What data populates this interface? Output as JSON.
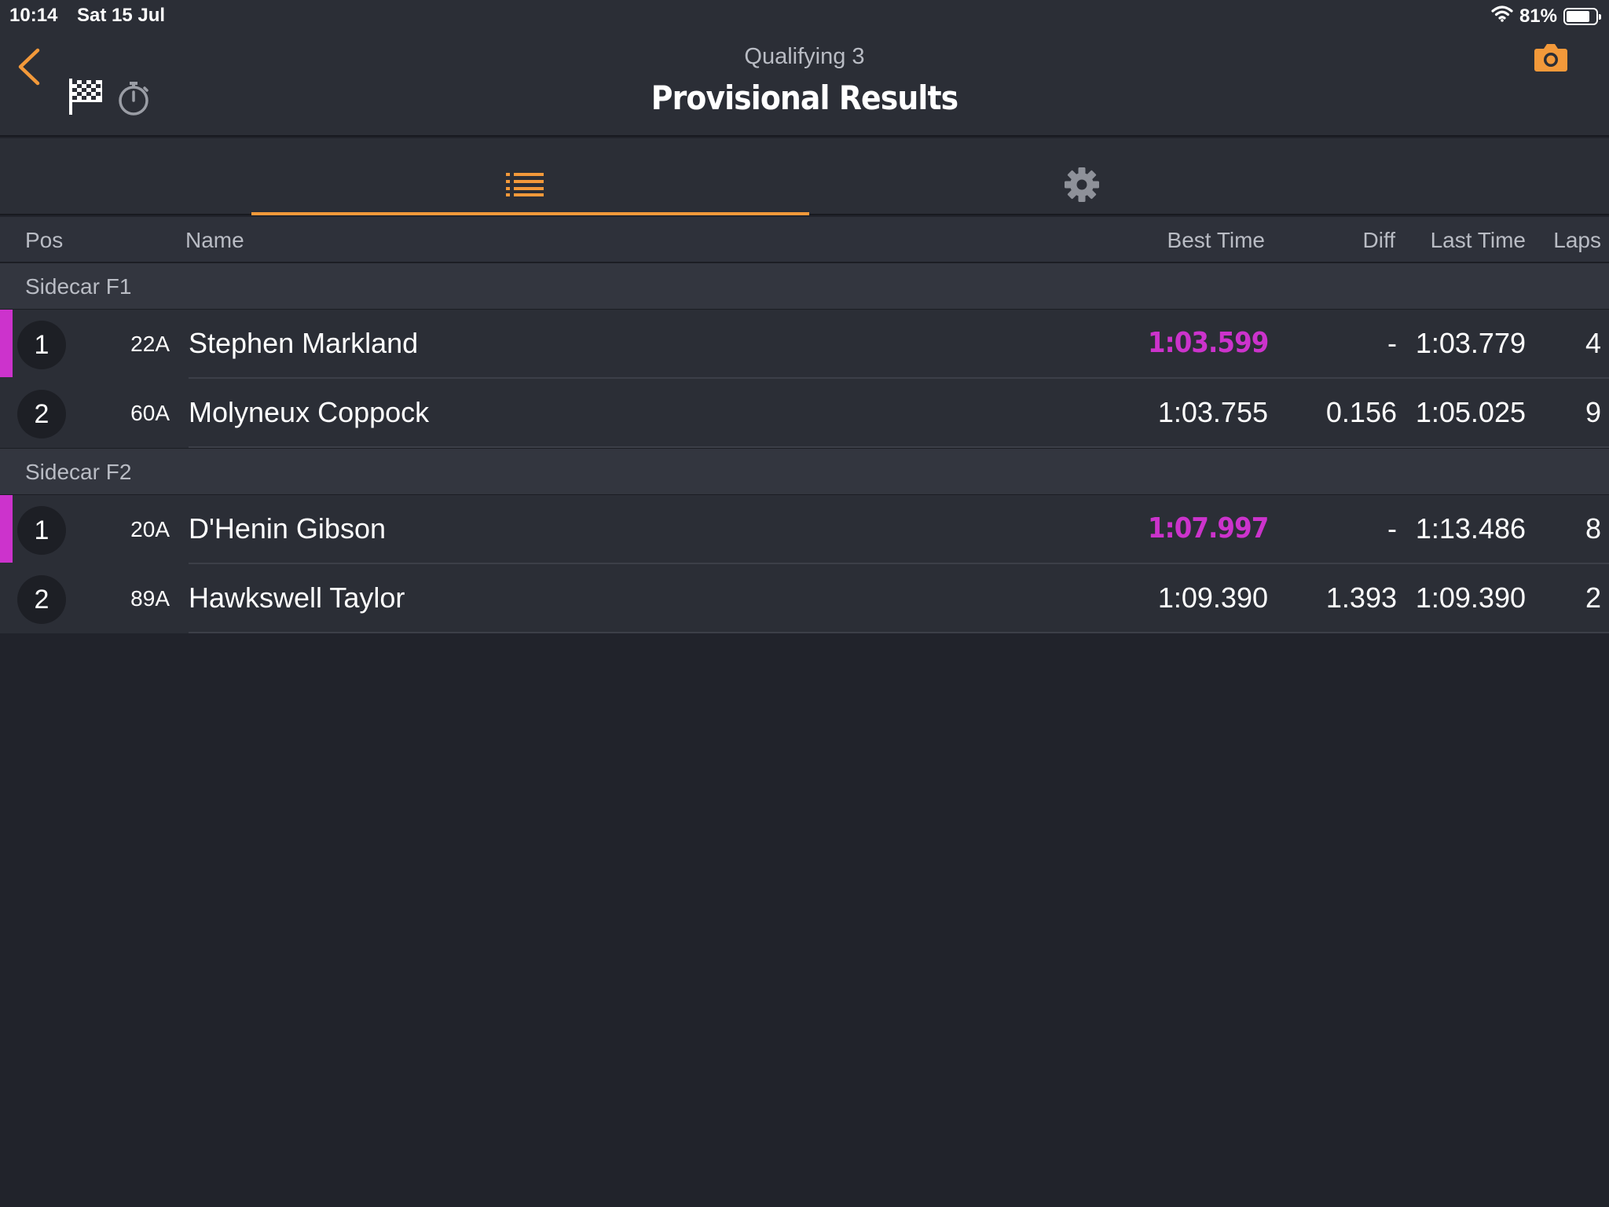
{
  "status_bar": {
    "time": "10:14",
    "date": "Sat 15 Jul",
    "battery": "81%",
    "battery_level": 0.81
  },
  "header": {
    "subtitle": "Qualifying 3",
    "title": "Provisional Results",
    "accent_color": "#f3993a",
    "icons": [
      "chevron-left-icon",
      "checkered-flag-icon",
      "stopwatch-icon",
      "camera-icon"
    ]
  },
  "tabs": [
    {
      "icon": "list-icon",
      "active": true
    },
    {
      "icon": "gear-icon",
      "active": false
    }
  ],
  "columns": {
    "pos": "Pos",
    "name": "Name",
    "best_time": "Best Time",
    "diff": "Diff",
    "last_time": "Last Time",
    "laps": "Laps"
  },
  "groups": [
    {
      "name": "Sidecar F1",
      "rows": [
        {
          "pos": "1",
          "number": "22A",
          "name": "Stephen Markland",
          "best": "1:03.599",
          "fastest": true,
          "diff": "-",
          "last": "1:03.779",
          "laps": "4"
        },
        {
          "pos": "2",
          "number": "60A",
          "name": "Molyneux Coppock",
          "best": "1:03.755",
          "fastest": false,
          "diff": "0.156",
          "last": "1:05.025",
          "laps": "9"
        }
      ]
    },
    {
      "name": "Sidecar F2",
      "rows": [
        {
          "pos": "1",
          "number": "20A",
          "name": "D'Henin Gibson",
          "best": "1:07.997",
          "fastest": true,
          "diff": "-",
          "last": "1:13.486",
          "laps": "8"
        },
        {
          "pos": "2",
          "number": "89A",
          "name": "Hawkswell Taylor",
          "best": "1:09.390",
          "fastest": false,
          "diff": "1.393",
          "last": "1:09.390",
          "laps": "2"
        }
      ]
    }
  ],
  "fastest_color": "#cc33cc"
}
